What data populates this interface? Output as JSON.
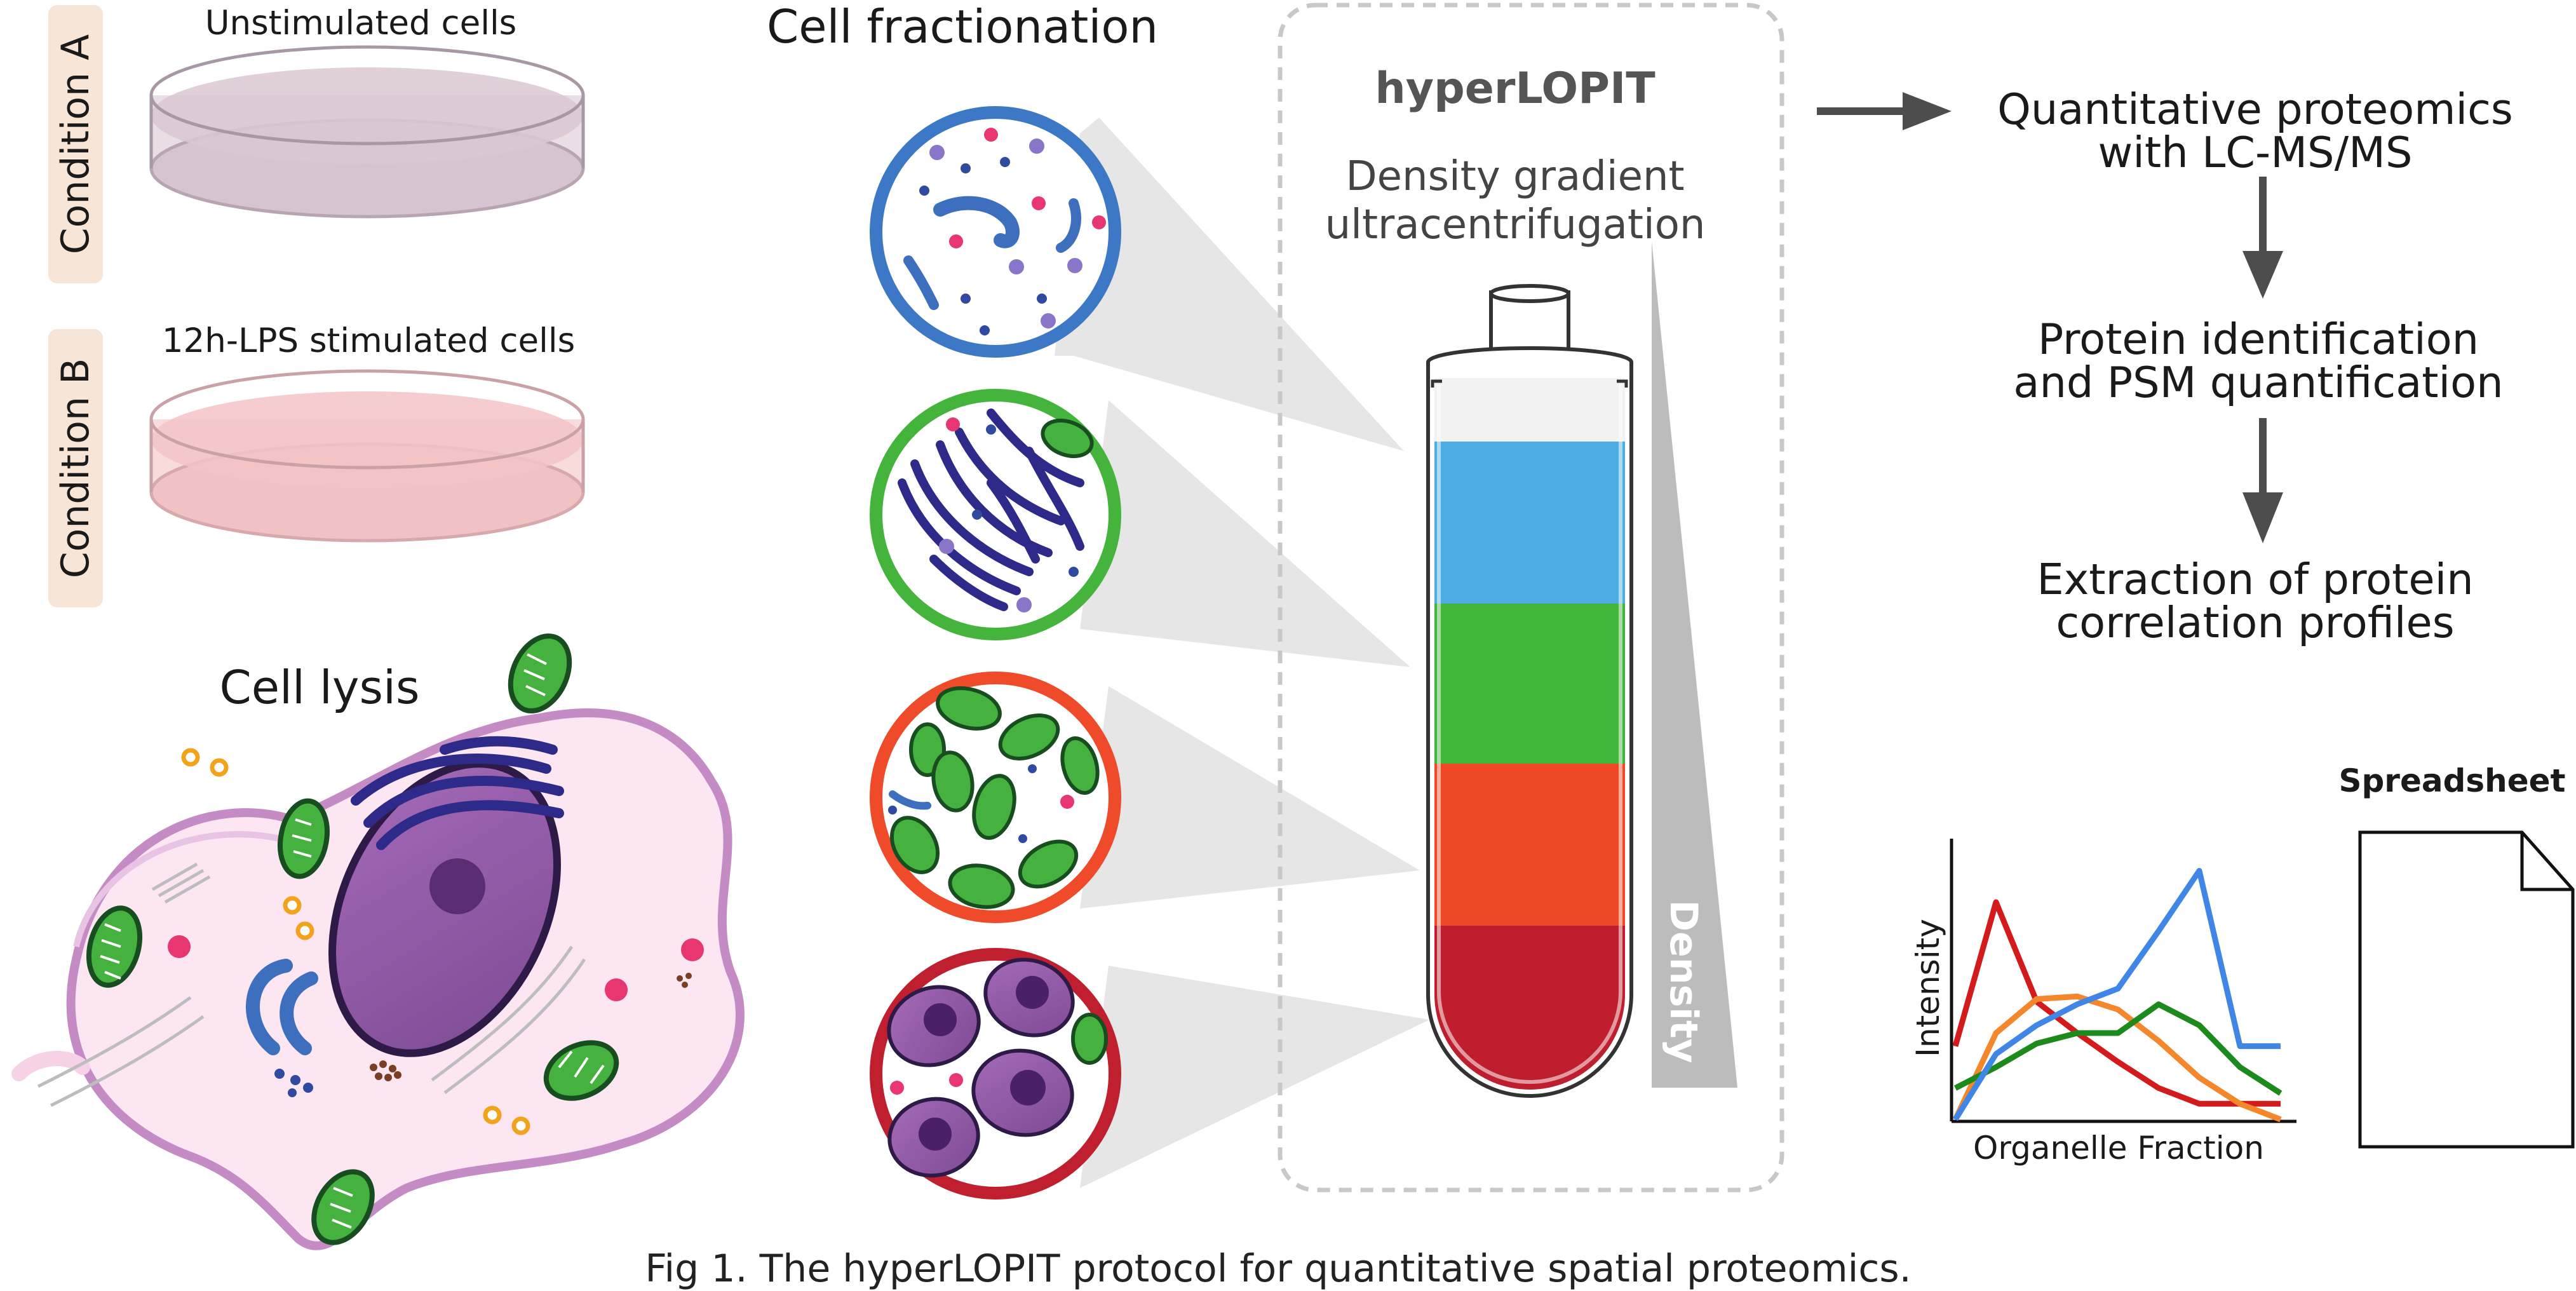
{
  "conditions": [
    {
      "tag": "Condition A",
      "dish_label": "Unstimulated cells",
      "medium_color": "#d9c8d4",
      "rim_color": "#c9b6c3"
    },
    {
      "tag": "Condition B",
      "dish_label": "12h-LPS stimulated cells",
      "medium_color": "#f2c3c6",
      "rim_color": "#dfb0b4"
    }
  ],
  "cell_lysis": {
    "title": "Cell lysis"
  },
  "fractionation": {
    "title": "Cell fractionation",
    "circle_colors": [
      "#3d78c6",
      "#45b43c",
      "#ef4b2a",
      "#bf1f2e"
    ]
  },
  "hyperlopit": {
    "title": "hyperLOPIT",
    "subtitle": [
      "Density gradient",
      "ultracentrifugation"
    ],
    "density_label": "Density",
    "band_colors": [
      "#f2f2f2",
      "#4fade6",
      "#42b53b",
      "#ef4a25",
      "#be1e2d"
    ]
  },
  "workflow": {
    "steps": [
      [
        "Quantitative proteomics",
        "with LC-MS/MS"
      ],
      [
        "Protein identification",
        "and PSM quantification"
      ],
      [
        "Extraction of protein",
        "correlation profiles"
      ]
    ],
    "arrow_color": "#4d4d4d"
  },
  "profile_plot": {
    "xlabel": "Organelle Fraction",
    "ylabel": "Intensity"
  },
  "chart_data": {
    "type": "line",
    "x": [
      1,
      2,
      3,
      4,
      5,
      6,
      7,
      8,
      9
    ],
    "xlabel": "Organelle Fraction",
    "ylabel": "Intensity",
    "grid": false,
    "series": [
      {
        "color": "#d41b1b",
        "values": [
          0.28,
          0.83,
          0.45,
          0.33,
          0.22,
          0.12,
          0.06,
          0.06,
          0.06
        ]
      },
      {
        "color": "#f4862b",
        "values": [
          0.0,
          0.33,
          0.46,
          0.47,
          0.42,
          0.3,
          0.16,
          0.06,
          0.0
        ]
      },
      {
        "color": "#1d8a1d",
        "values": [
          0.12,
          0.2,
          0.29,
          0.33,
          0.33,
          0.44,
          0.36,
          0.2,
          0.1
        ]
      },
      {
        "color": "#3f86e6",
        "values": [
          0.0,
          0.25,
          0.36,
          0.44,
          0.5,
          0.72,
          0.95,
          0.28,
          0.28
        ]
      }
    ]
  },
  "spreadsheet": {
    "title": "Spreadsheet"
  },
  "caption": "Fig 1. The hyperLOPIT protocol for quantitative spatial proteomics."
}
